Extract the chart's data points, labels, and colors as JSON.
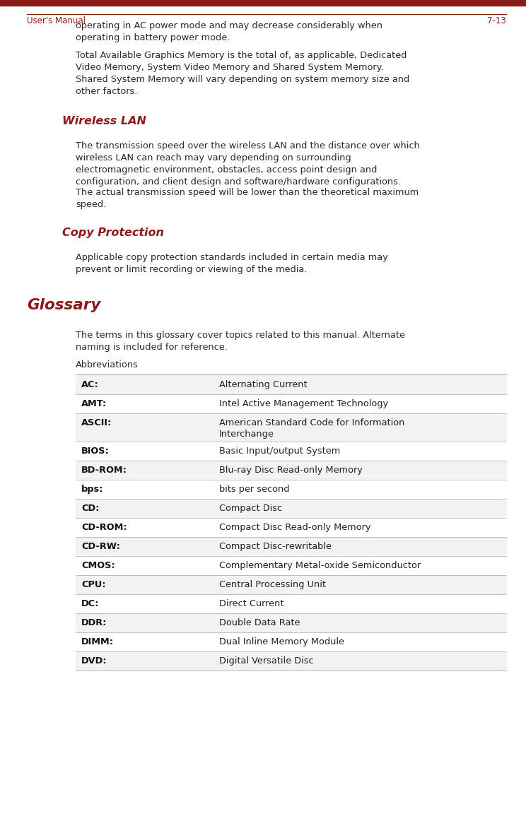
{
  "bg_color": "#ffffff",
  "top_bar_color": "#8b1a1a",
  "body_text_color": "#2a2a2a",
  "heading_color": "#8b1a1a",
  "table_line_color": "#aaaaaa",
  "footer_line_color": "#8b1a1a",
  "footer_text_color": "#8b1a1a",
  "footer_text_left": "User's Manual",
  "footer_text_right": "7-13",
  "para1": "operating in AC power mode and may decrease considerably when\noperating in battery power mode.",
  "para2": "Total Available Graphics Memory is the total of, as applicable, Dedicated\nVideo Memory, System Video Memory and Shared System Memory.\nShared System Memory will vary depending on system memory size and\nother factors.",
  "heading1": "Wireless LAN",
  "para3": "The transmission speed over the wireless LAN and the distance over which\nwireless LAN can reach may vary depending on surrounding\nelectromagnetic environment, obstacles, access point design and\nconfiguration, and client design and software/hardware configurations.",
  "para4": "The actual transmission speed will be lower than the theoretical maximum\nspeed.",
  "heading2": "Copy Protection",
  "para5": "Applicable copy protection standards included in certain media may\nprevent or limit recording or viewing of the media.",
  "heading3": "Glossary",
  "para6": "The terms in this glossary cover topics related to this manual. Alternate\nnaming is included for reference.",
  "table_header": "Abbreviations",
  "table_rows": [
    [
      "AC:",
      "Alternating Current"
    ],
    [
      "AMT:",
      "Intel Active Management Technology"
    ],
    [
      "ASCII:",
      "American Standard Code for Information\nInterchange"
    ],
    [
      "BIOS:",
      "Basic Input/output System"
    ],
    [
      "BD-ROM:",
      "Blu-ray Disc Read-only Memory"
    ],
    [
      "bps:",
      "bits per second"
    ],
    [
      "CD:",
      "Compact Disc"
    ],
    [
      "CD-ROM:",
      "Compact Disc Read-only Memory"
    ],
    [
      "CD-RW:",
      "Compact Disc-rewritable"
    ],
    [
      "CMOS:",
      "Complementary Metal-oxide Semiconductor"
    ],
    [
      "CPU:",
      "Central Processing Unit"
    ],
    [
      "DC:",
      "Direct Current"
    ],
    [
      "DDR:",
      "Double Data Rate"
    ],
    [
      "DIMM:",
      "Dual Inline Memory Module"
    ],
    [
      "DVD:",
      "Digital Versatile Disc"
    ]
  ]
}
